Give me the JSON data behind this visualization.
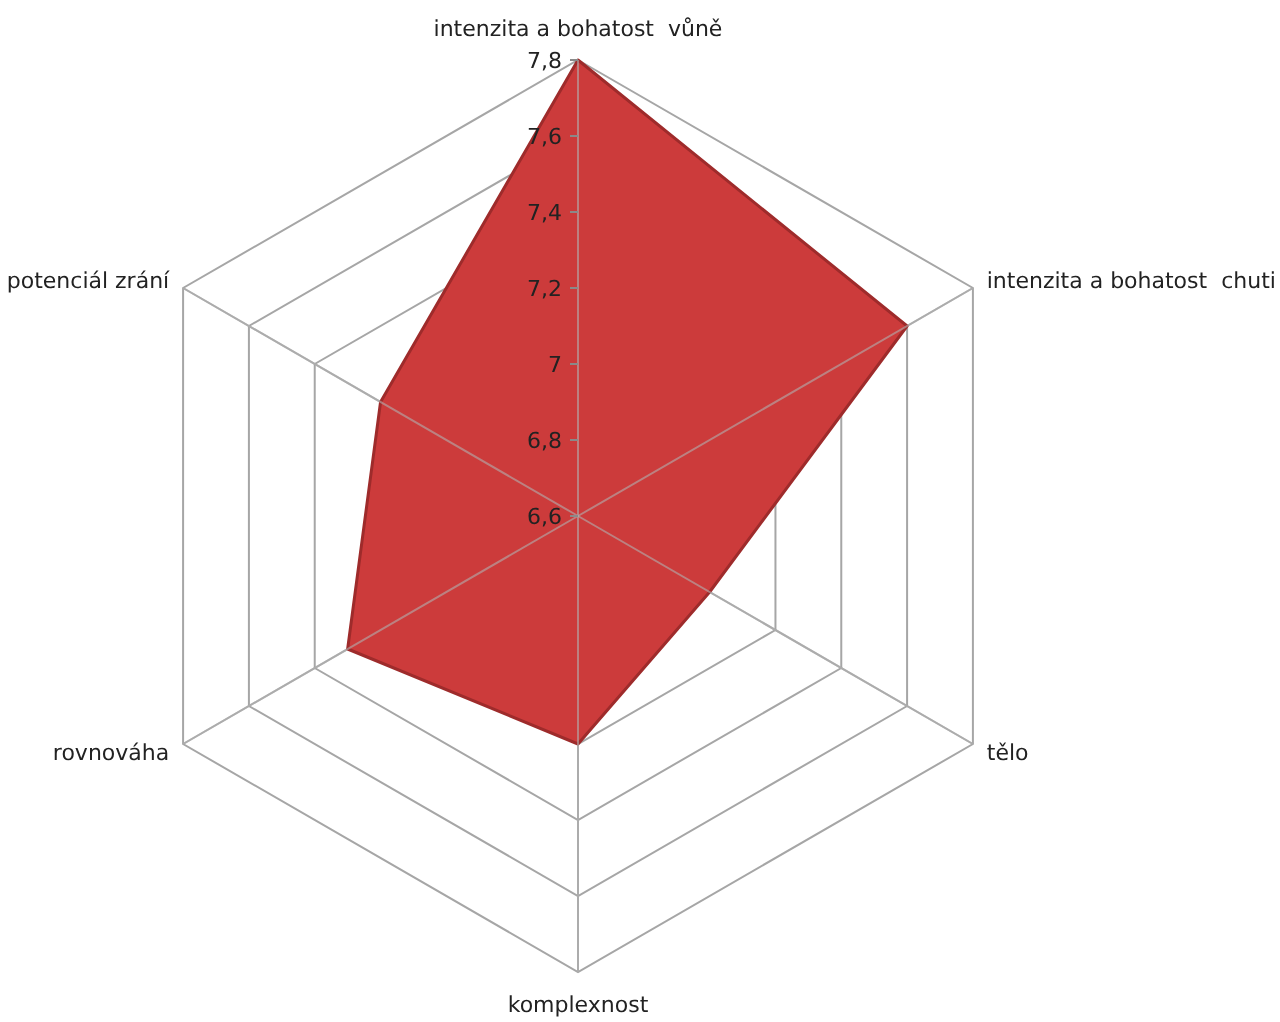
{
  "chart_data": {
    "type": "radar",
    "categories": [
      "intenzita a bohatost  vůně",
      "intenzita a bohatost  chuti",
      "tělo",
      "komplexnost",
      "rovnováha",
      "potenciál zrání"
    ],
    "series": [
      {
        "color": "#cc3b3b",
        "values": [
          7.8,
          7.6,
          7.0,
          7.2,
          7.3,
          7.2
        ]
      }
    ],
    "ylim": [
      6.6,
      7.8
    ],
    "yticks": [
      {
        "value": 6.6,
        "label": "6,6"
      },
      {
        "value": 6.8,
        "label": "6,8"
      },
      {
        "value": 7,
        "label": "7"
      },
      {
        "value": 7.2,
        "label": "7,2"
      },
      {
        "value": 7.4,
        "label": "7,4"
      },
      {
        "value": 7.6,
        "label": "7,6"
      },
      {
        "value": 7.8,
        "label": "7,8"
      }
    ],
    "grid": true
  }
}
